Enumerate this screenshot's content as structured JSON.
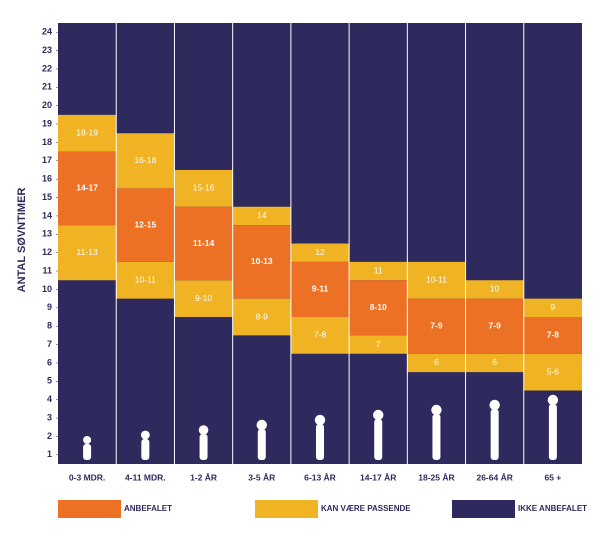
{
  "chart_data": {
    "type": "range",
    "y_label": "ANTAL SØVNTIMER",
    "categories": [
      "0-3 MDR.",
      "4-11 MDR.",
      "1-2 ÅR",
      "3-5 ÅR",
      "6-13 ÅR",
      "14-17 ÅR",
      "18-25 ÅR",
      "26-64 ÅR",
      "65 +"
    ],
    "ylim": [
      0.5,
      24.5
    ],
    "yticks": [
      1,
      2,
      3,
      4,
      5,
      6,
      7,
      8,
      9,
      10,
      11,
      12,
      13,
      14,
      15,
      16,
      17,
      18,
      19,
      20,
      21,
      22,
      23,
      24
    ],
    "background": {
      "name": "IKKE ANBEFALET",
      "color": "#2e2a5e"
    },
    "series": [
      {
        "name": "ANBEFALET",
        "color": "#ec7124",
        "low": [
          14,
          12,
          11,
          10,
          9,
          8,
          7,
          7,
          7
        ],
        "high": [
          17,
          15,
          14,
          13,
          11,
          10,
          9,
          9,
          8
        ],
        "value_labels": [
          "14-17",
          "12-15",
          "11-14",
          "10-13",
          "9-11",
          "8-10",
          "7-9",
          "7-9",
          "7-8"
        ]
      },
      {
        "name": "KAN VÆRE PASSENDE",
        "color": "#f0b323",
        "upper": {
          "low": [
            18,
            16,
            15,
            14,
            12,
            11,
            10,
            10,
            9
          ],
          "high": [
            19,
            18,
            16,
            14,
            12,
            11,
            11,
            10,
            9
          ],
          "value_labels": [
            "18-19",
            "16-18",
            "15-16",
            "14",
            "12",
            "11",
            "10-11",
            "10",
            "9"
          ]
        },
        "lower": {
          "low": [
            11,
            10,
            9,
            8,
            7,
            7,
            6,
            6,
            5
          ],
          "high": [
            13,
            11,
            10,
            9,
            8,
            7,
            6,
            6,
            6
          ],
          "value_labels": [
            "11-13",
            "10-11",
            "9-10",
            "8-9",
            "7-8",
            "7",
            "6",
            "6",
            "5-6"
          ]
        }
      }
    ]
  }
}
